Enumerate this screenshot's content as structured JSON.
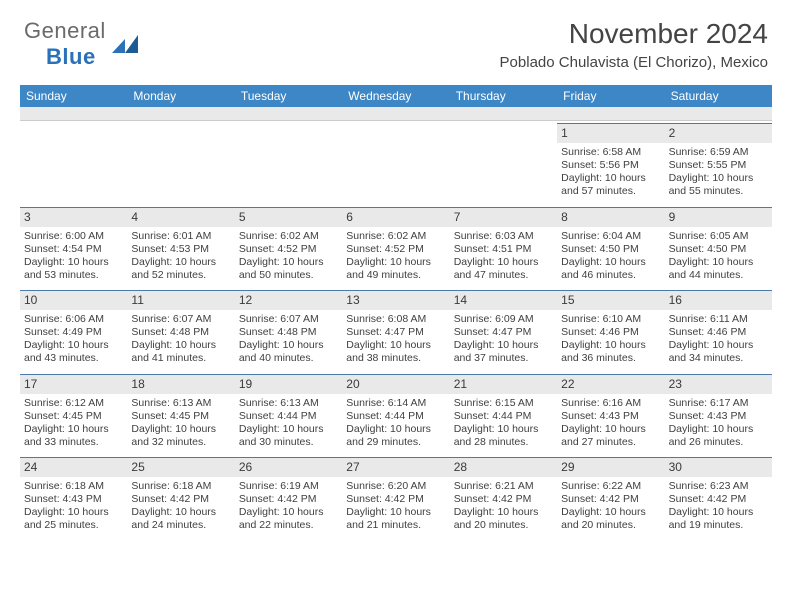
{
  "logo": {
    "text1": "General",
    "text2": "Blue"
  },
  "title": "November 2024",
  "location": "Poblado Chulavista (El Chorizo), Mexico",
  "colors": {
    "header_bg": "#3d87c7",
    "header_text": "#ffffff",
    "daynum_bg": "#e9e9e9",
    "divider": "#4a7aa8",
    "body_text": "#404040",
    "logo_gray": "#6a6a6a",
    "logo_blue": "#2a71b8"
  },
  "dow": [
    "Sunday",
    "Monday",
    "Tuesday",
    "Wednesday",
    "Thursday",
    "Friday",
    "Saturday"
  ],
  "weeks": [
    [
      null,
      null,
      null,
      null,
      null,
      {
        "n": "1",
        "sr": "6:58 AM",
        "ss": "5:56 PM",
        "dh": "10",
        "dm": "57"
      },
      {
        "n": "2",
        "sr": "6:59 AM",
        "ss": "5:55 PM",
        "dh": "10",
        "dm": "55"
      }
    ],
    [
      {
        "n": "3",
        "sr": "6:00 AM",
        "ss": "4:54 PM",
        "dh": "10",
        "dm": "53"
      },
      {
        "n": "4",
        "sr": "6:01 AM",
        "ss": "4:53 PM",
        "dh": "10",
        "dm": "52"
      },
      {
        "n": "5",
        "sr": "6:02 AM",
        "ss": "4:52 PM",
        "dh": "10",
        "dm": "50"
      },
      {
        "n": "6",
        "sr": "6:02 AM",
        "ss": "4:52 PM",
        "dh": "10",
        "dm": "49"
      },
      {
        "n": "7",
        "sr": "6:03 AM",
        "ss": "4:51 PM",
        "dh": "10",
        "dm": "47"
      },
      {
        "n": "8",
        "sr": "6:04 AM",
        "ss": "4:50 PM",
        "dh": "10",
        "dm": "46"
      },
      {
        "n": "9",
        "sr": "6:05 AM",
        "ss": "4:50 PM",
        "dh": "10",
        "dm": "44"
      }
    ],
    [
      {
        "n": "10",
        "sr": "6:06 AM",
        "ss": "4:49 PM",
        "dh": "10",
        "dm": "43"
      },
      {
        "n": "11",
        "sr": "6:07 AM",
        "ss": "4:48 PM",
        "dh": "10",
        "dm": "41"
      },
      {
        "n": "12",
        "sr": "6:07 AM",
        "ss": "4:48 PM",
        "dh": "10",
        "dm": "40"
      },
      {
        "n": "13",
        "sr": "6:08 AM",
        "ss": "4:47 PM",
        "dh": "10",
        "dm": "38"
      },
      {
        "n": "14",
        "sr": "6:09 AM",
        "ss": "4:47 PM",
        "dh": "10",
        "dm": "37"
      },
      {
        "n": "15",
        "sr": "6:10 AM",
        "ss": "4:46 PM",
        "dh": "10",
        "dm": "36"
      },
      {
        "n": "16",
        "sr": "6:11 AM",
        "ss": "4:46 PM",
        "dh": "10",
        "dm": "34"
      }
    ],
    [
      {
        "n": "17",
        "sr": "6:12 AM",
        "ss": "4:45 PM",
        "dh": "10",
        "dm": "33"
      },
      {
        "n": "18",
        "sr": "6:13 AM",
        "ss": "4:45 PM",
        "dh": "10",
        "dm": "32"
      },
      {
        "n": "19",
        "sr": "6:13 AM",
        "ss": "4:44 PM",
        "dh": "10",
        "dm": "30"
      },
      {
        "n": "20",
        "sr": "6:14 AM",
        "ss": "4:44 PM",
        "dh": "10",
        "dm": "29"
      },
      {
        "n": "21",
        "sr": "6:15 AM",
        "ss": "4:44 PM",
        "dh": "10",
        "dm": "28"
      },
      {
        "n": "22",
        "sr": "6:16 AM",
        "ss": "4:43 PM",
        "dh": "10",
        "dm": "27"
      },
      {
        "n": "23",
        "sr": "6:17 AM",
        "ss": "4:43 PM",
        "dh": "10",
        "dm": "26"
      }
    ],
    [
      {
        "n": "24",
        "sr": "6:18 AM",
        "ss": "4:43 PM",
        "dh": "10",
        "dm": "25"
      },
      {
        "n": "25",
        "sr": "6:18 AM",
        "ss": "4:42 PM",
        "dh": "10",
        "dm": "24"
      },
      {
        "n": "26",
        "sr": "6:19 AM",
        "ss": "4:42 PM",
        "dh": "10",
        "dm": "22"
      },
      {
        "n": "27",
        "sr": "6:20 AM",
        "ss": "4:42 PM",
        "dh": "10",
        "dm": "21"
      },
      {
        "n": "28",
        "sr": "6:21 AM",
        "ss": "4:42 PM",
        "dh": "10",
        "dm": "20"
      },
      {
        "n": "29",
        "sr": "6:22 AM",
        "ss": "4:42 PM",
        "dh": "10",
        "dm": "20"
      },
      {
        "n": "30",
        "sr": "6:23 AM",
        "ss": "4:42 PM",
        "dh": "10",
        "dm": "19"
      }
    ]
  ],
  "labels": {
    "sunrise": "Sunrise:",
    "sunset": "Sunset:",
    "daylight_prefix": "Daylight:",
    "hours_word": "hours",
    "and_word": "and",
    "minutes_word": "minutes."
  }
}
